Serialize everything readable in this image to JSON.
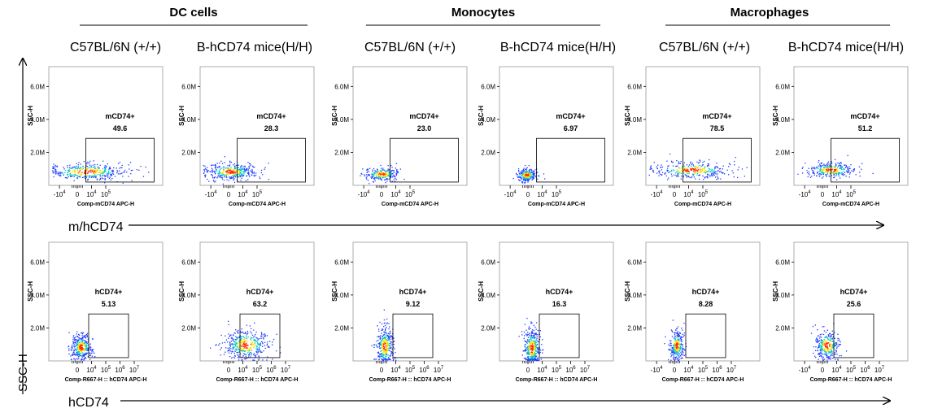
{
  "groups": [
    "DC cells",
    "Monocytes",
    "Macrophages"
  ],
  "column_labels": [
    "C57BL/6N (+/+)",
    "B-hCD74 mice(H/H)",
    "C57BL/6N (+/+)",
    "B-hCD74 mice(H/H)",
    "C57BL/6N (+/+)",
    "B-hCD74 mice(H/H)"
  ],
  "axis_annotations": {
    "y_arrow": "SSC-H",
    "row1_arrow": "m/hCD74",
    "row2_arrow": "hCD74"
  },
  "colors": {
    "density_low": "#1f3cff",
    "density_mid": "#00c8c8",
    "density_high": "#ffdd00",
    "density_peak": "#ff2a00"
  },
  "chart_data": [
    {
      "type": "scatter",
      "row": 1,
      "col": 1,
      "group": "DC cells",
      "sample": "C57BL/6N (+/+)",
      "gate": "mCD74+",
      "percent": "49.6",
      "xlabel": "Comp-mCD74 APC-H",
      "ylabel": "SSC-H",
      "x_ticks": [
        "-10^4",
        "0",
        "10^4",
        "10^5"
      ],
      "y_ticks": [
        "2.0M",
        "4.0M",
        "6.0M"
      ],
      "ylim": [
        0,
        7.2
      ],
      "gate_x": [
        0.6,
        5.4
      ],
      "gate_y": [
        0.2,
        2.85
      ],
      "cloud": {
        "cx": 0.6,
        "cy": 0.85,
        "sx": 1.5,
        "sy": 0.25,
        "n": 380
      }
    },
    {
      "type": "scatter",
      "row": 1,
      "col": 2,
      "group": "DC cells",
      "sample": "B-hCD74 mice(H/H)",
      "gate": "mCD74+",
      "percent": "28.3",
      "xlabel": "Comp-mCD74 APC-H",
      "ylabel": "SSC-H",
      "x_ticks": [
        "-10^4",
        "0",
        "10^4",
        "10^5"
      ],
      "y_ticks": [
        "2.0M",
        "4.0M",
        "6.0M"
      ],
      "ylim": [
        0,
        7.2
      ],
      "gate_x": [
        0.6,
        5.4
      ],
      "gate_y": [
        0.2,
        2.85
      ],
      "cloud": {
        "cx": 0.1,
        "cy": 0.85,
        "sx": 0.9,
        "sy": 0.25,
        "n": 380
      }
    },
    {
      "type": "scatter",
      "row": 1,
      "col": 3,
      "group": "Monocytes",
      "sample": "C57BL/6N (+/+)",
      "gate": "mCD74+",
      "percent": "23.0",
      "xlabel": "Comp-mCD74 APC-H",
      "ylabel": "SSC-H",
      "x_ticks": [
        "-10^4",
        "0",
        "10^4",
        "10^5"
      ],
      "y_ticks": [
        "2.0M",
        "4.0M",
        "6.0M"
      ],
      "ylim": [
        0,
        7.2
      ],
      "gate_x": [
        0.6,
        5.4
      ],
      "gate_y": [
        0.2,
        2.85
      ],
      "cloud": {
        "cx": 0.0,
        "cy": 0.7,
        "sx": 0.6,
        "sy": 0.2,
        "n": 250
      }
    },
    {
      "type": "scatter",
      "row": 1,
      "col": 4,
      "group": "Monocytes",
      "sample": "B-hCD74 mice(H/H)",
      "gate": "mCD74+",
      "percent": "6.97",
      "xlabel": "Comp-mCD74 APC-H",
      "ylabel": "SSC-H",
      "x_ticks": [
        "-10^4",
        "0",
        "10^4",
        "10^5"
      ],
      "y_ticks": [
        "2.0M",
        "4.0M",
        "6.0M"
      ],
      "ylim": [
        0,
        7.2
      ],
      "gate_x": [
        0.6,
        5.4
      ],
      "gate_y": [
        0.2,
        2.85
      ],
      "cloud": {
        "cx": -0.1,
        "cy": 0.65,
        "sx": 0.35,
        "sy": 0.2,
        "n": 250
      }
    },
    {
      "type": "scatter",
      "row": 1,
      "col": 5,
      "group": "Macrophages",
      "sample": "C57BL/6N (+/+)",
      "gate": "mCD74+",
      "percent": "78.5",
      "xlabel": "Comp-mCD74 APC-H",
      "ylabel": "SSC-H",
      "x_ticks": [
        "-10^4",
        "0",
        "10^4",
        "10^5"
      ],
      "y_ticks": [
        "2.0M",
        "4.0M",
        "6.0M"
      ],
      "ylim": [
        0,
        7.2
      ],
      "gate_x": [
        0.6,
        5.4
      ],
      "gate_y": [
        0.2,
        2.85
      ],
      "cloud": {
        "cx": 1.2,
        "cy": 0.95,
        "sx": 1.4,
        "sy": 0.25,
        "n": 350
      }
    },
    {
      "type": "scatter",
      "row": 1,
      "col": 6,
      "group": "Macrophages",
      "sample": "B-hCD74 mice(H/H)",
      "gate": "mCD74+",
      "percent": "51.2",
      "xlabel": "Comp-mCD74 APC-H",
      "ylabel": "SSC-H",
      "x_ticks": [
        "-10^4",
        "0",
        "10^4",
        "10^5"
      ],
      "y_ticks": [
        "2.0M",
        "4.0M",
        "6.0M"
      ],
      "ylim": [
        0,
        7.2
      ],
      "gate_x": [
        0.6,
        5.4
      ],
      "gate_y": [
        0.2,
        2.85
      ],
      "cloud": {
        "cx": 0.6,
        "cy": 0.95,
        "sx": 0.9,
        "sy": 0.22,
        "n": 300
      }
    },
    {
      "type": "scatter",
      "row": 2,
      "col": 1,
      "group": "DC cells",
      "sample": "C57BL/6N (+/+)",
      "gate": "hCD74+",
      "percent": "5.13",
      "xlabel": "Comp-R667-H :: hCD74 APC-H",
      "ylabel": "SSC-H",
      "x_ticks": [
        "0",
        "10^4",
        "10^5",
        "10^6",
        "10^7"
      ],
      "y_ticks": [
        "2.0M",
        "4.0M",
        "6.0M"
      ],
      "ylim": [
        0,
        7.2
      ],
      "gate_x": [
        0.8,
        3.6
      ],
      "gate_y": [
        0.2,
        2.85
      ],
      "cloud": {
        "cx": 0.25,
        "cy": 0.85,
        "sx": 0.35,
        "sy": 0.4,
        "n": 380
      }
    },
    {
      "type": "scatter",
      "row": 2,
      "col": 2,
      "group": "DC cells",
      "sample": "B-hCD74 mice(H/H)",
      "gate": "hCD74+",
      "percent": "63.2",
      "xlabel": "Comp-R667-H :: hCD74 APC-H",
      "ylabel": "SSC-H",
      "x_ticks": [
        "0",
        "10^4",
        "10^5",
        "10^6",
        "10^7"
      ],
      "y_ticks": [
        "2.0M",
        "4.0M",
        "6.0M"
      ],
      "ylim": [
        0,
        7.2
      ],
      "gate_x": [
        0.8,
        3.6
      ],
      "gate_y": [
        0.2,
        2.85
      ],
      "cloud": {
        "cx": 1.2,
        "cy": 1.0,
        "sx": 0.8,
        "sy": 0.45,
        "n": 420
      }
    },
    {
      "type": "scatter",
      "row": 2,
      "col": 3,
      "group": "Monocytes",
      "sample": "C57BL/6N (+/+)",
      "gate": "hCD74+",
      "percent": "9.12",
      "xlabel": "Comp-R667-H :: hCD74 APC-H",
      "ylabel": "SSC-H",
      "x_ticks": [
        "0",
        "10^4",
        "10^5",
        "10^6",
        "10^7"
      ],
      "y_ticks": [
        "2.0M",
        "4.0M",
        "6.0M"
      ],
      "ylim": [
        0,
        7.2
      ],
      "gate_x": [
        0.8,
        3.6
      ],
      "gate_y": [
        0.2,
        2.85
      ],
      "cloud": {
        "cx": 0.2,
        "cy": 0.9,
        "sx": 0.3,
        "sy": 0.6,
        "n": 350
      }
    },
    {
      "type": "scatter",
      "row": 2,
      "col": 4,
      "group": "Monocytes",
      "sample": "B-hCD74 mice(H/H)",
      "gate": "hCD74+",
      "percent": "16.3",
      "xlabel": "Comp-R667-H :: hCD74 APC-H",
      "ylabel": "SSC-H",
      "x_ticks": [
        "0",
        "10^4",
        "10^5",
        "10^6",
        "10^7"
      ],
      "y_ticks": [
        "2.0M",
        "4.0M",
        "6.0M"
      ],
      "ylim": [
        0,
        7.2
      ],
      "gate_x": [
        0.8,
        3.6
      ],
      "gate_y": [
        0.2,
        2.85
      ],
      "cloud": {
        "cx": 0.25,
        "cy": 0.8,
        "sx": 0.3,
        "sy": 0.6,
        "n": 380
      }
    },
    {
      "type": "scatter",
      "row": 2,
      "col": 5,
      "group": "Macrophages",
      "sample": "C57BL/6N (+/+)",
      "gate": "hCD74+",
      "percent": "8.28",
      "xlabel": "Comp-R667-H :: hCD74 APC-H",
      "ylabel": "SSC-H",
      "x_ticks": [
        "-10^4",
        "0",
        "10^4",
        "10^5",
        "10^6",
        "10^7"
      ],
      "y_ticks": [
        "2.0M",
        "4.0M",
        "6.0M"
      ],
      "ylim": [
        0,
        7.2
      ],
      "gate_x": [
        0.8,
        3.6
      ],
      "gate_y": [
        0.2,
        2.85
      ],
      "cloud": {
        "cx": 0.15,
        "cy": 0.95,
        "sx": 0.25,
        "sy": 0.45,
        "n": 300
      }
    },
    {
      "type": "scatter",
      "row": 2,
      "col": 6,
      "group": "Macrophages",
      "sample": "B-hCD74 mice(H/H)",
      "gate": "hCD74+",
      "percent": "25.6",
      "xlabel": "Comp-R667-H :: hCD74 APC-H",
      "ylabel": "SSC-H",
      "x_ticks": [
        "-10^4",
        "0",
        "10^4",
        "10^5",
        "10^6",
        "10^7"
      ],
      "y_ticks": [
        "2.0M",
        "4.0M",
        "6.0M"
      ],
      "ylim": [
        0,
        7.2
      ],
      "gate_x": [
        0.8,
        3.6
      ],
      "gate_y": [
        0.2,
        2.85
      ],
      "cloud": {
        "cx": 0.3,
        "cy": 0.95,
        "sx": 0.45,
        "sy": 0.45,
        "n": 320
      }
    }
  ]
}
